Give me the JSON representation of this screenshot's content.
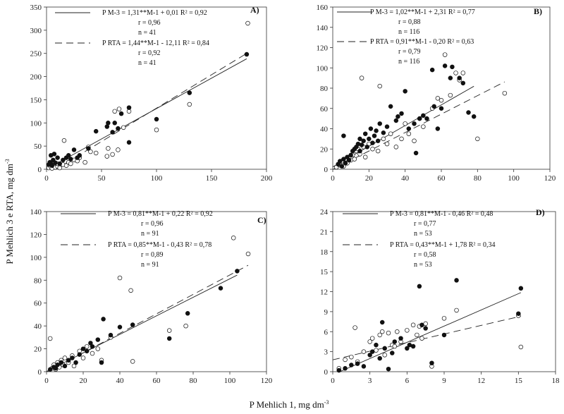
{
  "y_title": {
    "text": "P Mehlich 3 e RTA, mg dm",
    "exp": "-3"
  },
  "x_title": {
    "text": "P Mehlich 1, mg dm",
    "exp": "-3"
  },
  "chart_data": [
    {
      "type": "scatter",
      "label": "A)",
      "xlim": [
        0,
        200
      ],
      "ylim": [
        0,
        350
      ],
      "xticks": [
        "0",
        "50",
        "100",
        "150",
        "200"
      ],
      "yticks": [
        "0",
        "50",
        "100",
        "150",
        "200",
        "250",
        "300",
        "350"
      ],
      "legend": [
        {
          "name": "P M-3",
          "equation": "P M-3 = 1,31**M-1 + 0,01  R² = 0,92",
          "r": "r = 0,96",
          "n": "n = 41",
          "line": "solid"
        },
        {
          "name": "P RTA",
          "equation": "P RTA = 1,44**M-1 - 12,11  R² = 0,84",
          "r": "r = 0,92",
          "n": "n = 41",
          "line": "dashed"
        }
      ],
      "series": [
        {
          "name": "P M-3",
          "marker": "filled",
          "slope": 1.31,
          "intercept": 0.01,
          "x": [
            2,
            3,
            4,
            4,
            5,
            6,
            7,
            8,
            10,
            12,
            15,
            18,
            20,
            22,
            25,
            28,
            30,
            38,
            45,
            55,
            56,
            60,
            62,
            65,
            68,
            75,
            75,
            100,
            130,
            182
          ],
          "y": [
            10,
            15,
            12,
            30,
            8,
            20,
            33,
            14,
            25,
            12,
            20,
            25,
            30,
            22,
            42,
            25,
            30,
            45,
            82,
            92,
            100,
            80,
            100,
            88,
            120,
            133,
            58,
            108,
            165,
            248
          ]
        },
        {
          "name": "P RTA",
          "marker": "open",
          "slope": 1.44,
          "intercept": -12.11,
          "x": [
            2,
            4,
            5,
            6,
            8,
            10,
            10,
            12,
            15,
            16,
            18,
            20,
            22,
            25,
            28,
            30,
            35,
            38,
            40,
            45,
            55,
            56,
            60,
            62,
            65,
            66,
            70,
            75,
            100,
            130,
            183
          ],
          "y": [
            3,
            5,
            2,
            8,
            4,
            6,
            12,
            3,
            10,
            62,
            8,
            15,
            12,
            20,
            18,
            25,
            15,
            48,
            38,
            35,
            28,
            45,
            32,
            125,
            42,
            130,
            90,
            125,
            85,
            140,
            315
          ]
        }
      ]
    },
    {
      "type": "scatter",
      "label": "B)",
      "xlim": [
        0,
        120
      ],
      "ylim": [
        0,
        160
      ],
      "xticks": [
        "0",
        "20",
        "40",
        "60",
        "80",
        "100",
        "120"
      ],
      "yticks": [
        "0",
        "20",
        "40",
        "60",
        "80",
        "100",
        "120",
        "140",
        "160"
      ],
      "legend": [
        {
          "name": "P M-3",
          "equation": "P M-3 = 1,02**M-1 + 2,31  R² = 0,77",
          "r": "r = 0,88",
          "n": "n = 116",
          "line": "solid"
        },
        {
          "name": "P RTA",
          "equation": "P RTA = 0,91**M-1 - 0,20  R² = 0,63",
          "r": "r = 0,79",
          "n": "n = 116",
          "line": "dashed"
        }
      ],
      "series": [
        {
          "name": "P M-3",
          "marker": "filled",
          "slope": 1.02,
          "intercept": 2.31,
          "x": [
            3,
            4,
            5,
            6,
            7,
            8,
            9,
            10,
            11,
            12,
            13,
            14,
            15,
            15,
            16,
            17,
            18,
            19,
            20,
            21,
            22,
            23,
            24,
            25,
            26,
            28,
            30,
            32,
            35,
            36,
            38,
            40,
            42,
            45,
            46,
            48,
            50,
            52,
            55,
            56,
            58,
            60,
            62,
            65,
            66,
            70,
            72,
            75,
            78,
            6
          ],
          "y": [
            5,
            8,
            3,
            10,
            6,
            12,
            9,
            14,
            18,
            20,
            22,
            25,
            18,
            30,
            24,
            28,
            35,
            22,
            30,
            40,
            26,
            33,
            38,
            28,
            45,
            36,
            42,
            62,
            48,
            52,
            55,
            77,
            40,
            45,
            16,
            50,
            53,
            50,
            98,
            62,
            40,
            60,
            102,
            90,
            101,
            90,
            85,
            56,
            52,
            33
          ]
        },
        {
          "name": "P RTA",
          "marker": "open",
          "slope": 0.91,
          "intercept": -0.2,
          "x": [
            2,
            3,
            4,
            5,
            6,
            7,
            8,
            9,
            10,
            11,
            12,
            13,
            14,
            15,
            16,
            17,
            18,
            20,
            22,
            25,
            26,
            28,
            30,
            32,
            35,
            38,
            40,
            42,
            45,
            48,
            50,
            55,
            58,
            60,
            62,
            65,
            68,
            70,
            72,
            80,
            95
          ],
          "y": [
            2,
            5,
            4,
            8,
            3,
            10,
            6,
            12,
            9,
            14,
            10,
            18,
            20,
            15,
            90,
            22,
            12,
            25,
            20,
            18,
            82,
            30,
            25,
            35,
            22,
            30,
            45,
            35,
            28,
            50,
            42,
            60,
            70,
            68,
            113,
            73,
            95,
            88,
            95,
            30,
            75
          ]
        }
      ]
    },
    {
      "type": "scatter",
      "label": "C)",
      "xlim": [
        0,
        120
      ],
      "ylim": [
        0,
        140
      ],
      "xticks": [
        "0",
        "20",
        "40",
        "60",
        "80",
        "100",
        "120"
      ],
      "yticks": [
        "0",
        "20",
        "40",
        "60",
        "80",
        "100",
        "120",
        "140"
      ],
      "legend": [
        {
          "name": "P M-3",
          "equation": "P M-3 = 0,81**M-1 + 0,22  R² = 0,92",
          "r": "r = 0,96",
          "n": "n = 91",
          "line": "solid"
        },
        {
          "name": "P RTA",
          "equation": "P RTA = 0,85**M-1 - 0,43  R² = 0,78",
          "r": "r = 0,89",
          "n": "n = 91",
          "line": "dashed"
        }
      ],
      "series": [
        {
          "name": "P M-3",
          "marker": "filled",
          "slope": 0.81,
          "intercept": 0.22,
          "x": [
            2,
            4,
            5,
            6,
            8,
            10,
            12,
            14,
            16,
            18,
            20,
            22,
            24,
            25,
            28,
            30,
            31,
            35,
            40,
            47,
            67,
            77,
            95,
            104
          ],
          "y": [
            2,
            4,
            3,
            6,
            8,
            5,
            10,
            12,
            8,
            15,
            20,
            18,
            25,
            22,
            28,
            8,
            46,
            32,
            39,
            41,
            29,
            51,
            73,
            88
          ]
        },
        {
          "name": "P RTA",
          "marker": "open",
          "slope": 0.85,
          "intercept": -0.43,
          "x": [
            2,
            3,
            4,
            5,
            6,
            7,
            8,
            9,
            10,
            12,
            14,
            15,
            18,
            20,
            22,
            25,
            28,
            30,
            35,
            40,
            46,
            47,
            67,
            76,
            102,
            110
          ],
          "y": [
            29,
            3,
            6,
            2,
            8,
            4,
            10,
            6,
            12,
            8,
            14,
            5,
            18,
            12,
            22,
            16,
            20,
            10,
            30,
            82,
            71,
            9,
            36,
            40,
            117,
            103
          ]
        }
      ]
    },
    {
      "type": "scatter",
      "label": "D)",
      "xlim": [
        0,
        18
      ],
      "ylim": [
        0,
        24
      ],
      "xticks": [
        "0",
        "3",
        "6",
        "9",
        "12",
        "15",
        "18"
      ],
      "yticks": [
        "0",
        "3",
        "6",
        "9",
        "12",
        "15",
        "18",
        "21",
        "24"
      ],
      "legend": [
        {
          "name": "P M-3",
          "equation": "P M-3 = 0,81**M-1 - 0,46  R² = 0,48",
          "r": "r = 0,77",
          "n": "n = 53",
          "line": "solid"
        },
        {
          "name": "P RTA",
          "equation": "P RTA = 0,43**M-1 + 1,78  R² = 0,34",
          "r": "r = 0,58",
          "n": "n = 53",
          "line": "dashed"
        }
      ],
      "series": [
        {
          "name": "P M-3",
          "marker": "filled",
          "slope": 0.81,
          "intercept": -0.46,
          "x": [
            0.5,
            1.0,
            1.5,
            2.0,
            2.5,
            3.0,
            3.2,
            3.5,
            3.8,
            4.0,
            4.2,
            4.5,
            4.8,
            5.0,
            5.5,
            6.0,
            6.2,
            6.5,
            7.0,
            7.2,
            7.5,
            8.0,
            9.0,
            10.0,
            15.0,
            15.2
          ],
          "y": [
            0.2,
            0.5,
            1.0,
            1.2,
            0.8,
            2.5,
            3.0,
            4.0,
            2.0,
            7.4,
            3.5,
            0.4,
            2.8,
            4.5,
            5.0,
            3.5,
            4.0,
            3.8,
            12.8,
            7.0,
            6.5,
            1.3,
            5.5,
            13.7,
            8.7,
            12.5
          ]
        },
        {
          "name": "P RTA",
          "marker": "open",
          "slope": 0.43,
          "intercept": 1.78,
          "x": [
            0.5,
            1.0,
            1.5,
            1.8,
            2.0,
            2.5,
            3.0,
            3.2,
            3.5,
            3.8,
            4.0,
            4.2,
            4.5,
            4.8,
            5.0,
            5.2,
            5.5,
            6.0,
            6.5,
            6.8,
            7.0,
            7.2,
            7.5,
            8.0,
            9.0,
            10.0,
            15.0,
            15.2
          ],
          "y": [
            0.5,
            1.8,
            2.2,
            6.6,
            1.5,
            3.0,
            4.5,
            5.0,
            3.2,
            5.5,
            6.0,
            2.5,
            5.8,
            4.0,
            3.8,
            6.0,
            4.5,
            6.2,
            7.0,
            5.5,
            6.8,
            5.0,
            7.2,
            0.8,
            8.0,
            9.2,
            8.4,
            3.7
          ]
        }
      ]
    }
  ]
}
